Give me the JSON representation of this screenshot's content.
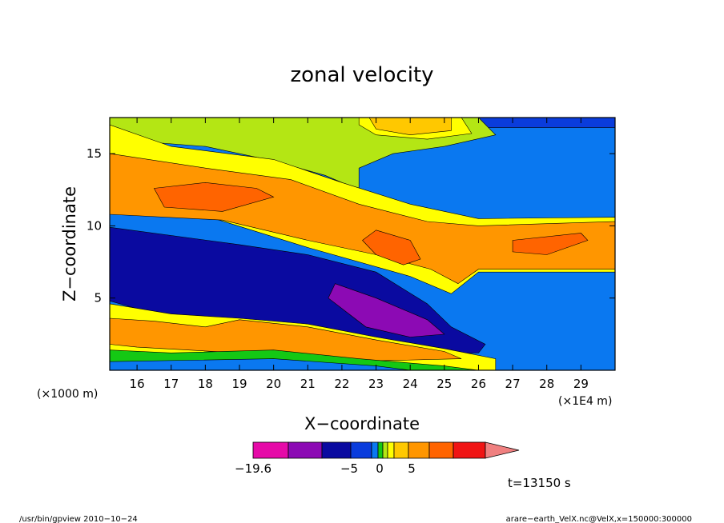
{
  "chart_data": {
    "type": "heatmap",
    "subtype": "filled-contour",
    "title": "zonal velocity",
    "xlabel": "X−coordinate",
    "ylabel": "Z−coordinate",
    "x_units": "(×1E4 m)",
    "y_units": "(×1000 m)",
    "xlim": [
      15.2,
      30.0
    ],
    "ylim": [
      0.0,
      17.5
    ],
    "x_ticks": [
      "16",
      "17",
      "18",
      "19",
      "20",
      "21",
      "22",
      "23",
      "24",
      "25",
      "26",
      "27",
      "28",
      "29"
    ],
    "y_ticks": [
      "5",
      "10",
      "15"
    ],
    "colorbar": {
      "colors": [
        "#e60aa8",
        "#8c0ab4",
        "#0a0aa0",
        "#0a3cdc",
        "#0a78f0",
        "#14c814",
        "#b4e614",
        "#ffff00",
        "#ffc800",
        "#ff9600",
        "#ff6400",
        "#f01414",
        "#f08080"
      ],
      "labels": [
        "−19.6",
        "−5",
        "0",
        "5"
      ],
      "extend": "max"
    },
    "annotations": {
      "time": "t=13150 s"
    }
  },
  "footer": {
    "left": "/usr/bin/gpview   2010−10−24",
    "right": "arare−earth_VelX.nc@VelX,x=150000:300000"
  }
}
